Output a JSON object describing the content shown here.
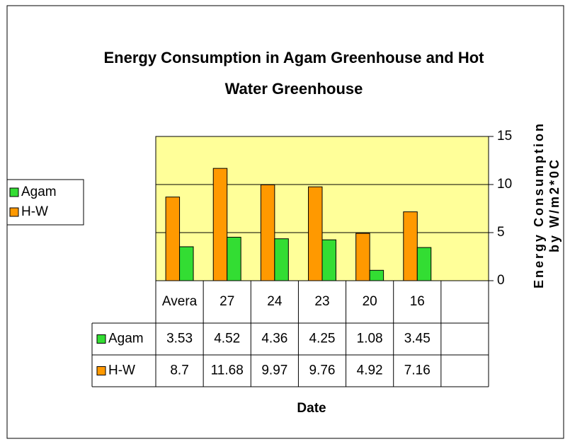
{
  "chart_data": {
    "type": "bar",
    "title": [
      "Energy Consumption in Agam Greenhouse and Hot",
      "Water Greenhouse"
    ],
    "xlabel": "Date",
    "ylabel": [
      "Energy Consumption",
      "by W/m2*0C"
    ],
    "categories": [
      "Avera",
      "27",
      "24",
      "23",
      "20",
      "16",
      null
    ],
    "series": [
      {
        "name": "Agam",
        "color": "#33dd33",
        "values": [
          3.53,
          4.52,
          4.36,
          4.25,
          1.08,
          3.45,
          null
        ]
      },
      {
        "name": "H-W",
        "color": "#ff9900",
        "values": [
          8.7,
          11.68,
          9.97,
          9.76,
          4.92,
          7.16,
          null
        ]
      }
    ],
    "ylim": [
      0,
      15
    ],
    "yticks": [
      0,
      5,
      10,
      15
    ],
    "grid": true,
    "legend": "left",
    "plot_background": "#ffff99"
  }
}
